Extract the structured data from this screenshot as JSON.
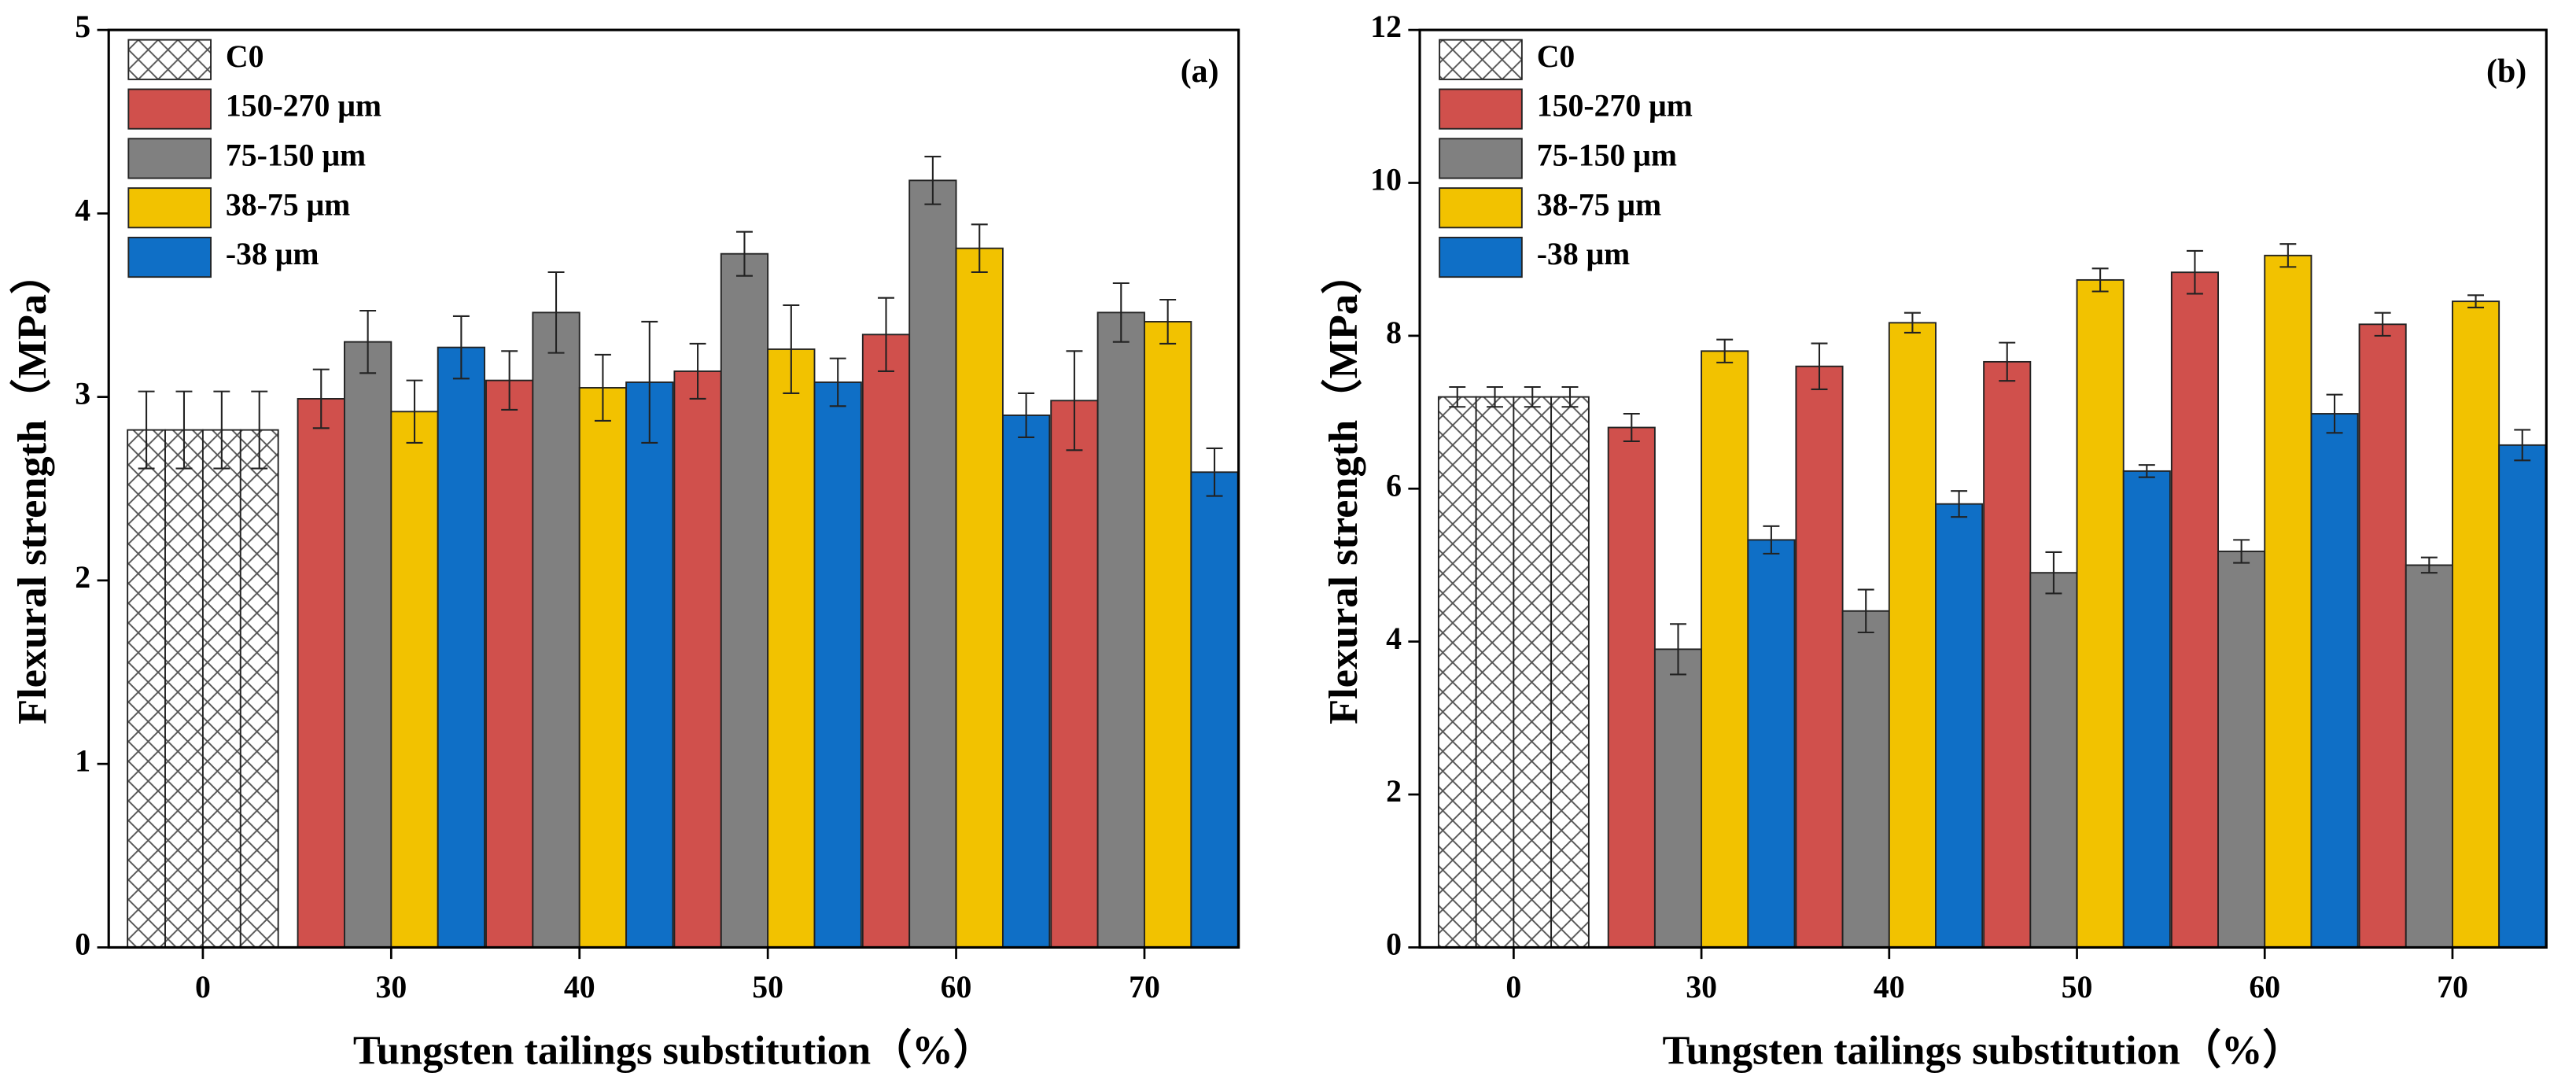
{
  "chart_data": [
    {
      "type": "bar",
      "panel_label": "(a)",
      "x_label": "Tungsten tailings substitution（%）",
      "y_label": "Flexural strength（MPa）",
      "categories": [
        "0",
        "30",
        "40",
        "50",
        "60",
        "70"
      ],
      "ylim": [
        0,
        5
      ],
      "yticks": [
        0,
        1,
        2,
        3,
        4,
        5
      ],
      "legend": "upper left",
      "series": [
        {
          "name": "C0",
          "color": "#ffffff",
          "hatch": "x",
          "values": [
            2.82,
            null,
            null,
            null,
            null,
            null
          ],
          "errors": [
            0.21,
            null,
            null,
            null,
            null,
            null
          ]
        },
        {
          "name": "150-270 μm",
          "color": "#d0504c",
          "values": [
            null,
            2.99,
            3.09,
            3.14,
            3.34,
            2.98
          ],
          "errors": [
            null,
            0.16,
            0.16,
            0.15,
            0.2,
            0.27
          ]
        },
        {
          "name": "75-150 μm",
          "color": "#808080",
          "values": [
            null,
            3.3,
            3.46,
            3.78,
            4.18,
            3.46
          ],
          "errors": [
            null,
            0.17,
            0.22,
            0.12,
            0.13,
            0.16
          ]
        },
        {
          "name": "38-75 μm",
          "color": "#f2c200",
          "values": [
            null,
            2.92,
            3.05,
            3.26,
            3.81,
            3.41
          ],
          "errors": [
            null,
            0.17,
            0.18,
            0.24,
            0.13,
            0.12
          ]
        },
        {
          "name": "-38 μm",
          "color": "#0f6fc6",
          "values": [
            null,
            3.27,
            3.08,
            3.08,
            2.9,
            2.59
          ],
          "errors": [
            null,
            0.17,
            0.33,
            0.13,
            0.12,
            0.13
          ]
        }
      ]
    },
    {
      "type": "bar",
      "panel_label": "(b)",
      "x_label": "Tungsten tailings substitution（%）",
      "y_label": "Flexural strength（MPa）",
      "categories": [
        "0",
        "30",
        "40",
        "50",
        "60",
        "70"
      ],
      "ylim": [
        0,
        12
      ],
      "yticks": [
        0,
        2,
        4,
        6,
        8,
        10,
        12
      ],
      "legend": "upper left",
      "series": [
        {
          "name": "C0",
          "color": "#ffffff",
          "hatch": "x",
          "values": [
            7.2,
            null,
            null,
            null,
            null,
            null
          ],
          "errors": [
            0.13,
            null,
            null,
            null,
            null,
            null
          ]
        },
        {
          "name": "150-270 μm",
          "color": "#d0504c",
          "values": [
            null,
            6.8,
            7.6,
            7.66,
            8.83,
            8.15
          ],
          "errors": [
            null,
            0.18,
            0.3,
            0.25,
            0.28,
            0.15
          ]
        },
        {
          "name": "75-150 μm",
          "color": "#808080",
          "values": [
            null,
            3.9,
            4.4,
            4.9,
            5.18,
            5.0
          ],
          "errors": [
            null,
            0.33,
            0.28,
            0.27,
            0.15,
            0.1
          ]
        },
        {
          "name": "38-75 μm",
          "color": "#f2c200",
          "values": [
            null,
            7.8,
            8.17,
            8.73,
            9.05,
            8.45
          ],
          "errors": [
            null,
            0.15,
            0.13,
            0.15,
            0.15,
            0.08
          ]
        },
        {
          "name": "-38 μm",
          "color": "#0f6fc6",
          "values": [
            null,
            5.33,
            5.8,
            6.23,
            6.98,
            6.57
          ],
          "errors": [
            null,
            0.18,
            0.17,
            0.08,
            0.25,
            0.2
          ]
        }
      ]
    }
  ]
}
